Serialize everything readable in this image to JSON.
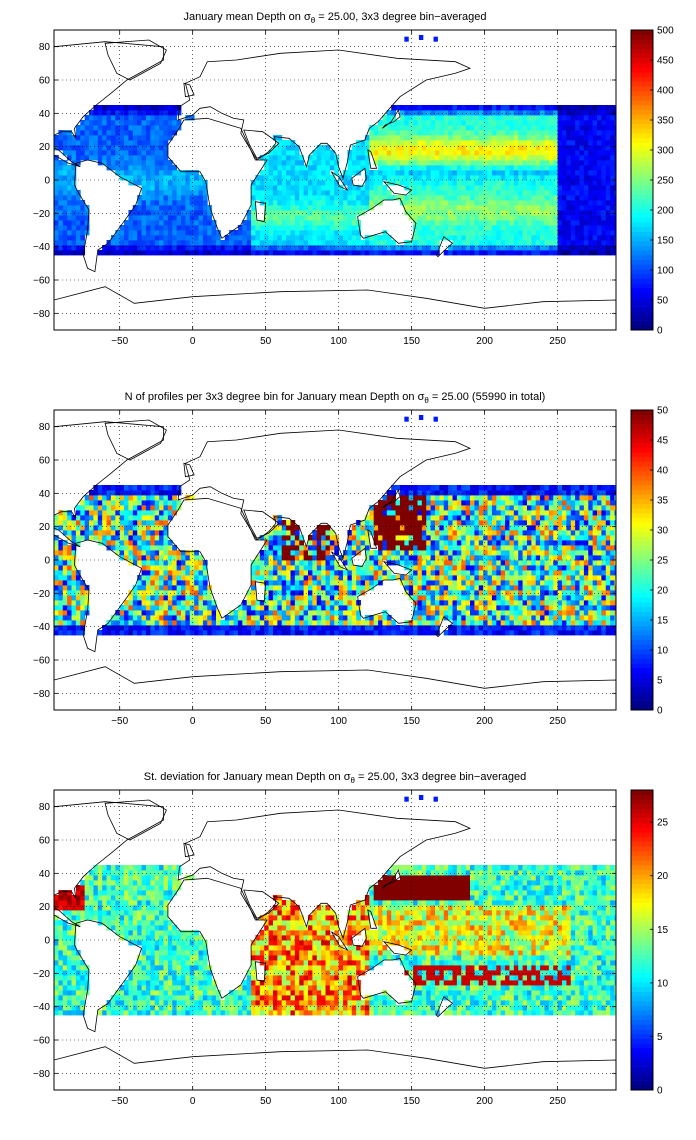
{
  "figure": {
    "panels": [
      {
        "title_pre": "January mean Depth on σ",
        "title_sub": "θ",
        "title_post": " = 25.00, 3x3 degree bin−averaged",
        "colorbar": {
          "ticks": [
            "0",
            "50",
            "100",
            "150",
            "200",
            "250",
            "300",
            "350",
            "400",
            "450",
            "500"
          ],
          "min": 0,
          "max": 500
        }
      },
      {
        "title_pre": "N of profiles per 3x3 degree bin for January mean Depth on σ",
        "title_sub": "θ",
        "title_post": " = 25.00 (55990 in total)",
        "colorbar": {
          "ticks": [
            "0",
            "5",
            "10",
            "15",
            "20",
            "25",
            "30",
            "35",
            "40",
            "45",
            "50"
          ],
          "min": 0,
          "max": 50
        }
      },
      {
        "title_pre": "St. deviation for January mean Depth on σ",
        "title_sub": "θ",
        "title_post": " = 25.00, 3x3 degree bin−averaged",
        "colorbar": {
          "ticks": [
            "0",
            "5",
            "10",
            "15",
            "20",
            "25"
          ],
          "min": 0,
          "max": 28
        }
      }
    ],
    "xticks": [
      "−50",
      "0",
      "50",
      "100",
      "150",
      "200",
      "250"
    ],
    "yticks": [
      "80",
      "60",
      "40",
      "20",
      "0",
      "−20",
      "−40",
      "−60",
      "−80"
    ]
  },
  "chart_data": [
    {
      "type": "heatmap",
      "title": "January mean Depth on σθ = 25.00, 3x3 degree bin−averaged",
      "x_range": [
        -95,
        290
      ],
      "y_range": [
        -90,
        90
      ],
      "x_ticks": [
        -50,
        0,
        50,
        100,
        150,
        200,
        250
      ],
      "y_ticks": [
        80,
        60,
        40,
        20,
        0,
        -20,
        -40,
        -60,
        -80
      ],
      "grid": true,
      "colormap": "jet",
      "colorbar_range": [
        0,
        500
      ],
      "bin_size_deg": 3,
      "coverage_lat_range": [
        -44,
        44
      ],
      "typical_values": {
        "high_latitude_edges": 20,
        "equatorial_atlantic": 150,
        "tropical_indian": 200,
        "subtropical_north_pacific": 300,
        "south_pacific_band": 200
      }
    },
    {
      "type": "heatmap",
      "title": "N of profiles per 3x3 degree bin for January mean Depth on σθ = 25.00 (55990 in total)",
      "x_range": [
        -95,
        290
      ],
      "y_range": [
        -90,
        90
      ],
      "x_ticks": [
        -50,
        0,
        50,
        100,
        150,
        200,
        250
      ],
      "y_ticks": [
        80,
        60,
        40,
        20,
        0,
        -20,
        -40,
        -60,
        -80
      ],
      "grid": true,
      "colormap": "jet",
      "colorbar_range": [
        0,
        50
      ],
      "total_profiles": 55990,
      "typical_values": {
        "open_ocean": 22,
        "western_north_pacific": 50,
        "arabian_sea_bay_of_bengal": 50,
        "edges": 5
      }
    },
    {
      "type": "heatmap",
      "title": "St. deviation for January mean Depth on σθ = 25.00, 3x3 degree bin−averaged",
      "x_range": [
        -95,
        290
      ],
      "y_range": [
        -90,
        90
      ],
      "x_ticks": [
        -50,
        0,
        50,
        100,
        150,
        200,
        250
      ],
      "y_ticks": [
        80,
        60,
        40,
        20,
        0,
        -20,
        -40,
        -60,
        -80
      ],
      "grid": true,
      "colormap": "jet",
      "colorbar_range": [
        0,
        28
      ],
      "typical_values": {
        "atlantic": 9,
        "indian_ocean": 20,
        "kuroshio_extension": 28,
        "south_pacific_band": 26,
        "central_pacific": 15
      }
    }
  ]
}
